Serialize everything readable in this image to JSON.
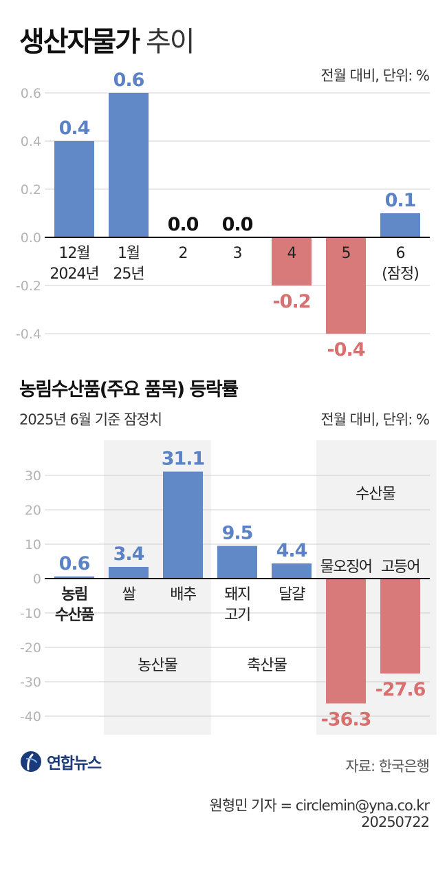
{
  "header": {
    "title_main": "생산자물가",
    "title_sub": "추이"
  },
  "brand": {
    "logo_name": "연합뉴스",
    "logo_color": "#1b3a7a"
  },
  "colors": {
    "positive": "#6189c8",
    "negative": "#d87a7a",
    "positive_label": "#5a82c4",
    "negative_label": "#d97070",
    "group_bg": "#f2f2f2"
  },
  "chart_data": [
    {
      "type": "bar",
      "unit_label": "전월 대비, 단위: %",
      "ylim": [
        -0.4,
        0.6
      ],
      "yticks": [
        "0.6",
        "0.4",
        "0.2",
        "0.0",
        "-0.2",
        "-0.4"
      ],
      "grid": true,
      "categories": [
        {
          "line1": "12월",
          "line2": "2024년"
        },
        {
          "line1": "1월",
          "line2": "25년"
        },
        {
          "line1": "2",
          "line2": ""
        },
        {
          "line1": "3",
          "line2": ""
        },
        {
          "line1": "4",
          "line2": ""
        },
        {
          "line1": "5",
          "line2": ""
        },
        {
          "line1": "6",
          "line2": "(잠정)"
        }
      ],
      "values": [
        0.4,
        0.6,
        0.0,
        0.0,
        -0.2,
        -0.4,
        0.1
      ],
      "value_labels": [
        "0.4",
        "0.6",
        "0.0",
        "0.0",
        "-0.2",
        "-0.4",
        "0.1"
      ]
    },
    {
      "type": "bar",
      "title": "농림수산품(주요 품목) 등락률",
      "subtitle": "2025년 6월 기준 잠정치",
      "unit_label": "전월 대비, 단위: %",
      "ylim": [
        -40,
        30
      ],
      "yticks": [
        "30",
        "20",
        "10",
        "0",
        "-10",
        "-20",
        "-30",
        "-40"
      ],
      "grid": true,
      "categories": [
        {
          "line1": "농림",
          "line2": "수산품"
        },
        {
          "line1": "쌀",
          "line2": ""
        },
        {
          "line1": "배추",
          "line2": ""
        },
        {
          "line1": "돼지",
          "line2": "고기"
        },
        {
          "line1": "달걀",
          "line2": ""
        },
        {
          "line1": "물오징어",
          "line2": ""
        },
        {
          "line1": "고등어",
          "line2": ""
        }
      ],
      "values": [
        0.6,
        3.4,
        31.1,
        9.5,
        4.4,
        -36.3,
        -27.6
      ],
      "value_labels": [
        "0.6",
        "3.4",
        "31.1",
        "9.5",
        "4.4",
        "-36.3",
        "-27.6"
      ],
      "groups": [
        "농산물",
        "축산물",
        "수산물"
      ]
    }
  ],
  "footer": {
    "source": "자료: 한국은행",
    "credit": "원형민 기자 = circlemin@yna.co.kr",
    "date": "20250722"
  }
}
